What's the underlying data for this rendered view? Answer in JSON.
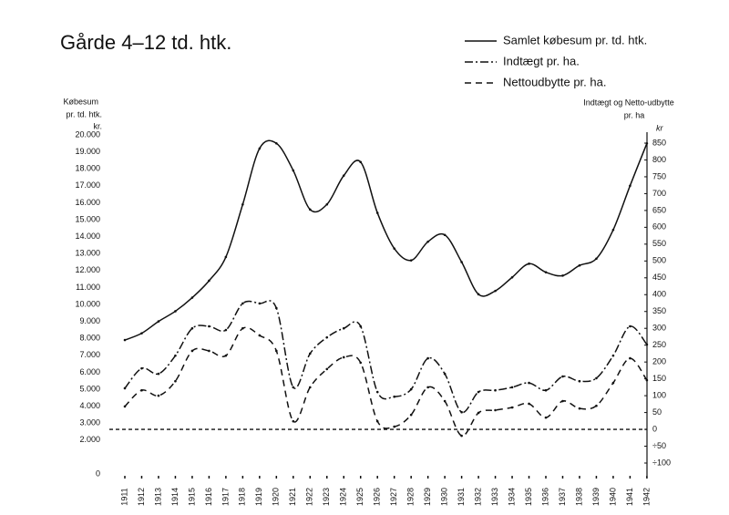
{
  "chart_data": {
    "type": "line",
    "title": "Gårde 4–12 td. htk.",
    "y_label": [
      "Købesum",
      "pr. td. htk.",
      "kr."
    ],
    "y2_label": [
      "Indtægt og Netto-udbytte",
      "pr. ha",
      "kr"
    ],
    "categories": [
      "1911",
      "1912",
      "1913",
      "1914",
      "1915",
      "1916",
      "1917",
      "1918",
      "1919",
      "1920",
      "1921",
      "1922",
      "1923",
      "1924",
      "1925",
      "1926",
      "1927",
      "1928",
      "1929",
      "1930",
      "1931",
      "1932",
      "1933",
      "1934",
      "1935",
      "1936",
      "1937",
      "1938",
      "1939",
      "1940",
      "1941",
      "1942"
    ],
    "series": [
      {
        "name": "Samlet købesum pr. td. htk.",
        "color": "#111111",
        "dash": "solid",
        "axis": "y",
        "values": [
          7900,
          8300,
          9000,
          9600,
          10400,
          11400,
          12800,
          15900,
          19200,
          19500,
          17900,
          15600,
          15900,
          17600,
          18400,
          15400,
          13300,
          12600,
          13700,
          14100,
          12500,
          10600,
          10800,
          11600,
          12400,
          11900,
          11700,
          12300,
          12700,
          14400,
          17000,
          19500
        ]
      },
      {
        "name": "Indtægt pr. ha.",
        "color": "#111111",
        "dash": "dashdot",
        "axis": "y2",
        "values": [
          122,
          181,
          165,
          219,
          300,
          306,
          295,
          374,
          374,
          360,
          125,
          225,
          273,
          300,
          306,
          111,
          97,
          119,
          211,
          165,
          51,
          111,
          116,
          125,
          138,
          116,
          157,
          143,
          152,
          219,
          306,
          252
        ]
      },
      {
        "name": "Nettoudbytte pr. ha.",
        "color": "#111111",
        "dash": "dashed",
        "axis": "y2",
        "values": [
          68,
          116,
          100,
          143,
          233,
          233,
          219,
          300,
          279,
          233,
          24,
          125,
          179,
          214,
          198,
          24,
          8,
          43,
          125,
          84,
          -19,
          49,
          57,
          65,
          76,
          35,
          84,
          62,
          70,
          138,
          211,
          146
        ]
      }
    ],
    "ylim": [
      0,
      20000
    ],
    "yticks": [
      0,
      {
        "value": 2000,
        "label": "2.000"
      },
      {
        "value": 3000,
        "label": "3.000"
      },
      {
        "value": 4000,
        "label": "4.000"
      },
      {
        "value": 5000,
        "label": "5.000"
      },
      {
        "value": 6000,
        "label": "6.000"
      },
      {
        "value": 7000,
        "label": "7.000"
      },
      {
        "value": 8000,
        "label": "8.000"
      },
      {
        "value": 9000,
        "label": "9.000"
      },
      {
        "value": 10000,
        "label": "10.000"
      },
      {
        "value": 11000,
        "label": "11.000"
      },
      {
        "value": 12000,
        "label": "12.000"
      },
      {
        "value": 13000,
        "label": "13.000"
      },
      {
        "value": 14000,
        "label": "14.000"
      },
      {
        "value": 15000,
        "label": "15.000"
      },
      {
        "value": 16000,
        "label": "16.000"
      },
      {
        "value": 17000,
        "label": "17.000"
      },
      {
        "value": 18000,
        "label": "18.000"
      },
      {
        "value": 19000,
        "label": "19.000"
      },
      {
        "value": 20000,
        "label": "20.000"
      }
    ],
    "y2lim": [
      -100,
      850
    ],
    "y2ticks": [
      {
        "value": -100,
        "label": "÷100"
      },
      {
        "value": -50,
        "label": "÷50"
      },
      0,
      50,
      100,
      150,
      200,
      250,
      300,
      350,
      400,
      450,
      500,
      550,
      600,
      650,
      700,
      750,
      800,
      850
    ],
    "legend": "top-right"
  }
}
